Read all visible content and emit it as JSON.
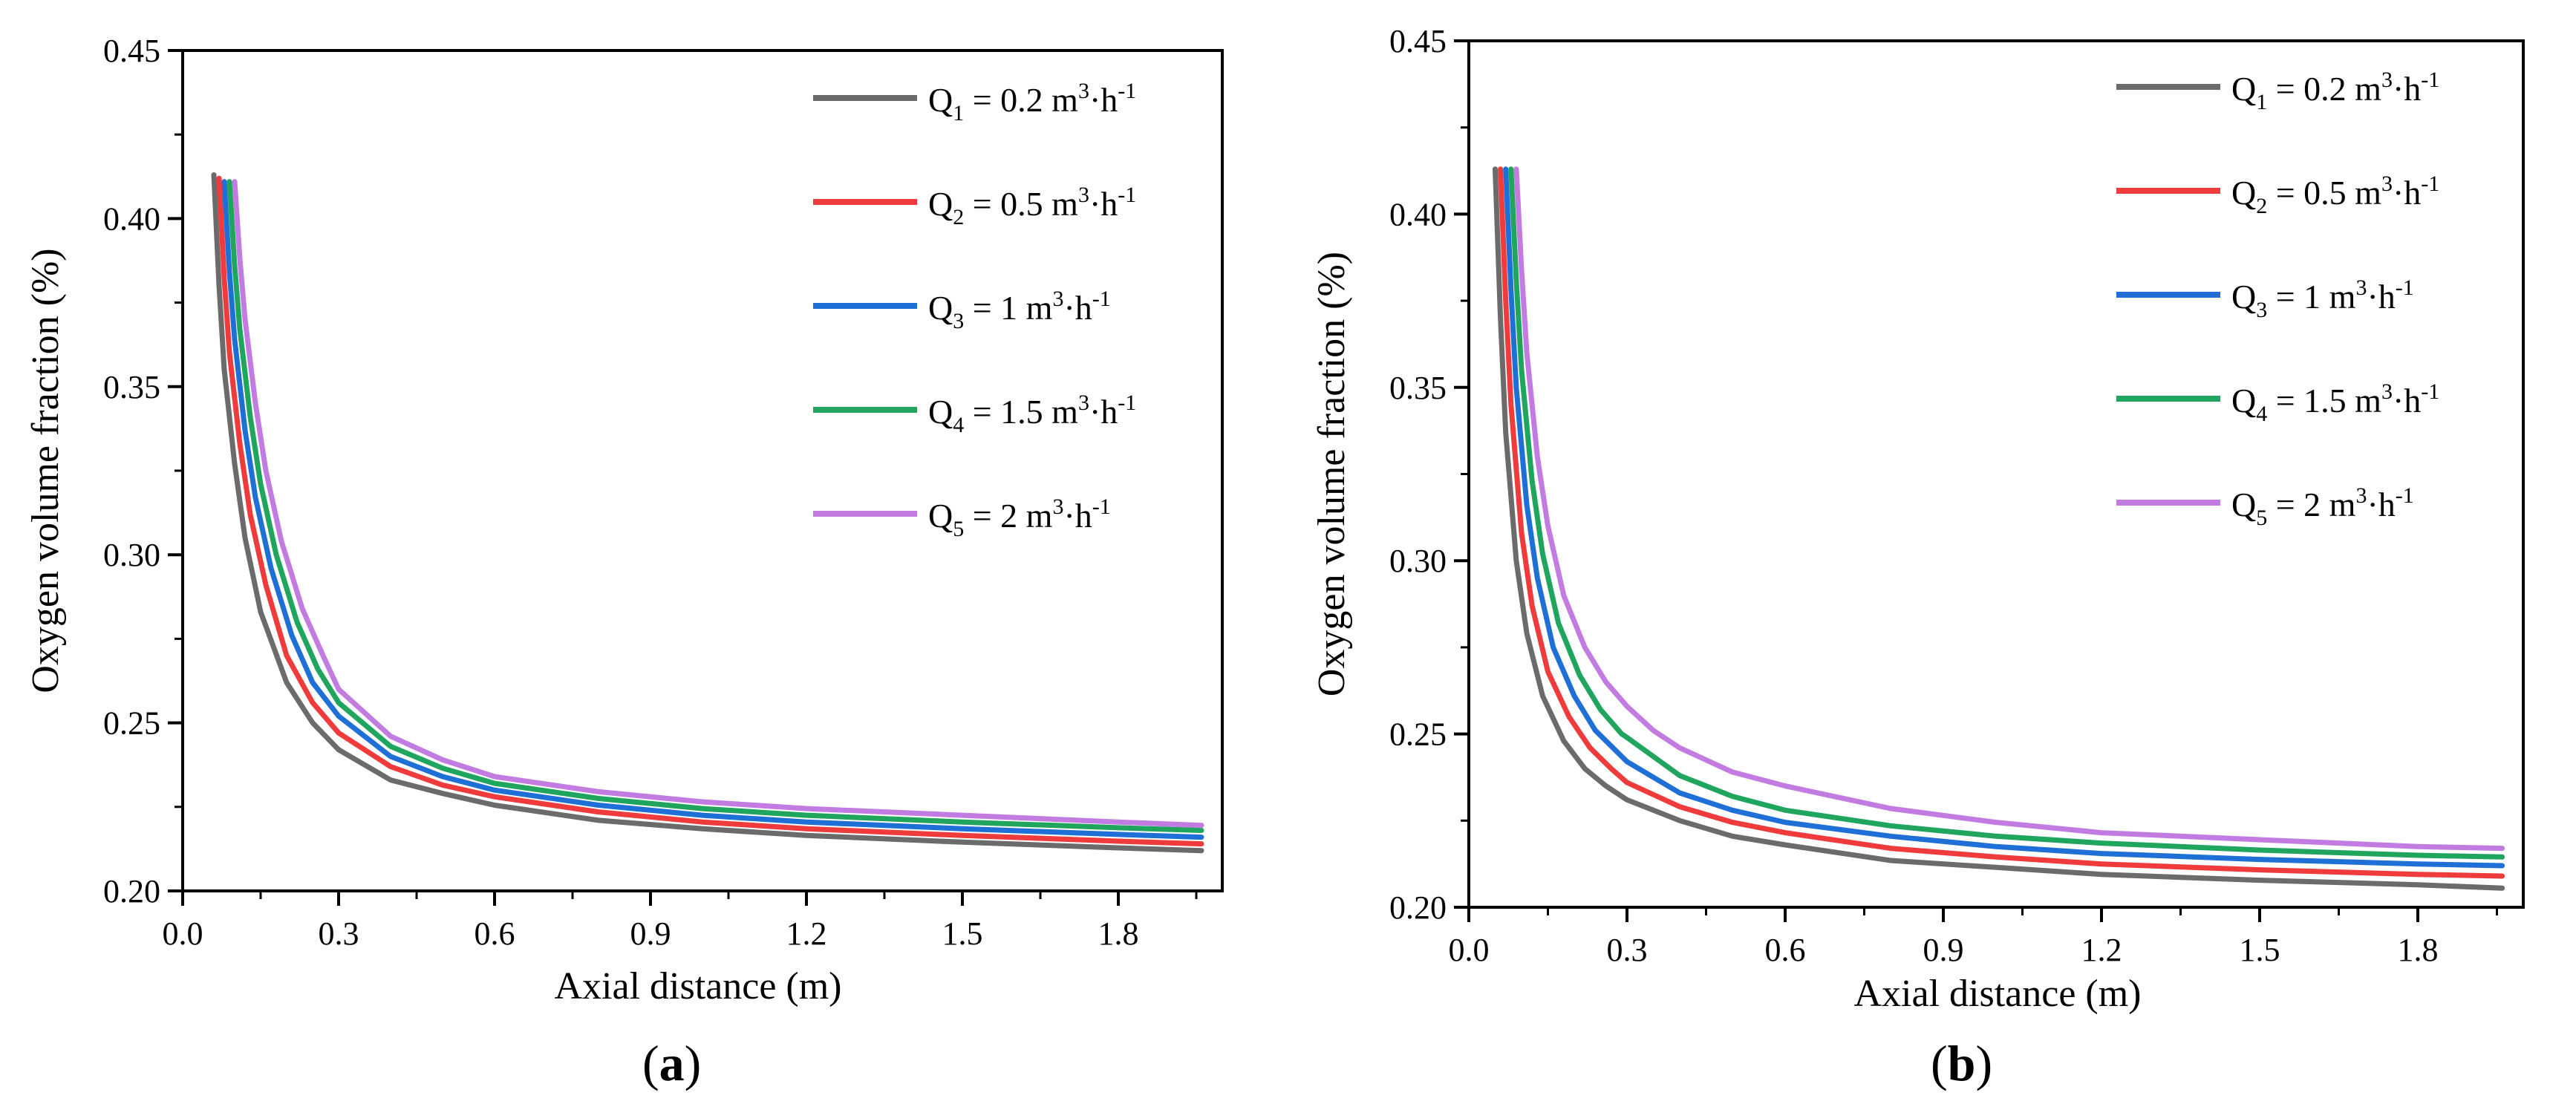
{
  "chart_data": [
    {
      "type": "line",
      "panel_label": "a",
      "xlabel": "Axial distance (m)",
      "ylabel": "Oxygen volume fraction (%)",
      "xlim": [
        0.0,
        2.0
      ],
      "ylim": [
        0.2,
        0.45
      ],
      "xticks": [
        "0.0",
        "0.3",
        "0.6",
        "0.9",
        "1.2",
        "1.5",
        "1.8"
      ],
      "yticks": [
        "0.20",
        "0.25",
        "0.30",
        "0.35",
        "0.40",
        "0.45"
      ],
      "legend_position": "top-right",
      "series": [
        {
          "name": "Q1 = 0.2 m3·h-1",
          "label_main": "Q",
          "label_sub": "1",
          "label_value": "= 0.2 m",
          "label_sup1": "3",
          "label_unit": "·h",
          "label_sup2": "-1",
          "color": "#6b6b6b",
          "x": [
            0.06,
            0.07,
            0.08,
            0.1,
            0.12,
            0.15,
            0.2,
            0.25,
            0.3,
            0.4,
            0.5,
            0.6,
            0.8,
            1.0,
            1.2,
            1.5,
            1.8,
            1.96
          ],
          "y": [
            0.413,
            0.38,
            0.355,
            0.327,
            0.305,
            0.283,
            0.262,
            0.25,
            0.242,
            0.233,
            0.229,
            0.2255,
            0.221,
            0.2185,
            0.2165,
            0.2145,
            0.2128,
            0.212
          ]
        },
        {
          "name": "Q2 = 0.5 m3·h-1",
          "label_main": "Q",
          "label_sub": "2",
          "label_value": "= 0.5 m",
          "label_sup1": "3",
          "label_unit": "·h",
          "label_sup2": "-1",
          "color": "#ef3b3b",
          "x": [
            0.07,
            0.08,
            0.09,
            0.11,
            0.13,
            0.16,
            0.2,
            0.25,
            0.3,
            0.4,
            0.5,
            0.6,
            0.8,
            1.0,
            1.2,
            1.5,
            1.8,
            1.96
          ],
          "y": [
            0.412,
            0.382,
            0.36,
            0.333,
            0.312,
            0.291,
            0.27,
            0.256,
            0.247,
            0.237,
            0.2315,
            0.228,
            0.2235,
            0.2205,
            0.2185,
            0.2165,
            0.2148,
            0.214
          ]
        },
        {
          "name": "Q3 = 1 m3·h-1",
          "label_main": "Q",
          "label_sub": "3",
          "label_value": "= 1 m",
          "label_sup1": "3",
          "label_unit": "·h",
          "label_sup2": "-1",
          "color": "#1e6fd6",
          "x": [
            0.08,
            0.09,
            0.1,
            0.12,
            0.14,
            0.17,
            0.21,
            0.25,
            0.3,
            0.4,
            0.5,
            0.6,
            0.8,
            1.0,
            1.2,
            1.5,
            1.8,
            1.96
          ],
          "y": [
            0.411,
            0.384,
            0.364,
            0.337,
            0.317,
            0.296,
            0.276,
            0.262,
            0.252,
            0.24,
            0.234,
            0.23,
            0.2255,
            0.2225,
            0.2205,
            0.2185,
            0.2168,
            0.216
          ]
        },
        {
          "name": "Q4 = 1.5 m3·h-1",
          "label_main": "Q",
          "label_sub": "4",
          "label_value": "= 1.5 m",
          "label_sup1": "3",
          "label_unit": "·h",
          "label_sup2": "-1",
          "color": "#1fa55e",
          "x": [
            0.09,
            0.1,
            0.11,
            0.13,
            0.15,
            0.18,
            0.22,
            0.26,
            0.3,
            0.4,
            0.5,
            0.6,
            0.8,
            1.0,
            1.2,
            1.5,
            1.8,
            1.96
          ],
          "y": [
            0.411,
            0.386,
            0.367,
            0.341,
            0.321,
            0.3,
            0.28,
            0.266,
            0.256,
            0.243,
            0.2365,
            0.232,
            0.2275,
            0.2245,
            0.2225,
            0.2205,
            0.2188,
            0.218
          ]
        },
        {
          "name": "Q5 = 2 m3·h-1",
          "label_main": "Q",
          "label_sub": "5",
          "label_value": "= 2 m",
          "label_sup1": "3",
          "label_unit": "·h",
          "label_sup2": "-1",
          "color": "#c27be0",
          "x": [
            0.1,
            0.11,
            0.12,
            0.14,
            0.16,
            0.19,
            0.23,
            0.27,
            0.3,
            0.4,
            0.5,
            0.6,
            0.8,
            1.0,
            1.2,
            1.5,
            1.8,
            1.96
          ],
          "y": [
            0.411,
            0.388,
            0.37,
            0.345,
            0.325,
            0.304,
            0.284,
            0.27,
            0.26,
            0.246,
            0.239,
            0.234,
            0.2295,
            0.2265,
            0.2245,
            0.2225,
            0.2205,
            0.2195
          ]
        }
      ]
    },
    {
      "type": "line",
      "panel_label": "b",
      "xlabel": "Axial distance (m)",
      "ylabel": "Oxygen volume fraction (%)",
      "xlim": [
        0.0,
        2.0
      ],
      "ylim": [
        0.2,
        0.45
      ],
      "xticks": [
        "0.0",
        "0.3",
        "0.6",
        "0.9",
        "1.2",
        "1.5",
        "1.8"
      ],
      "yticks": [
        "0.20",
        "0.25",
        "0.30",
        "0.35",
        "0.40",
        "0.45"
      ],
      "legend_position": "top-right",
      "series": [
        {
          "name": "Q1 = 0.2 m3·h-1",
          "label_main": "Q",
          "label_sub": "1",
          "label_value": "= 0.2 m",
          "label_sup1": "3",
          "label_unit": "·h",
          "label_sup2": "-1",
          "color": "#6b6b6b",
          "x": [
            0.05,
            0.06,
            0.07,
            0.09,
            0.11,
            0.14,
            0.18,
            0.22,
            0.26,
            0.3,
            0.4,
            0.5,
            0.6,
            0.8,
            1.0,
            1.2,
            1.5,
            1.8,
            1.96
          ],
          "y": [
            0.413,
            0.37,
            0.337,
            0.3,
            0.279,
            0.261,
            0.248,
            0.24,
            0.235,
            0.231,
            0.225,
            0.2205,
            0.218,
            0.2135,
            0.2115,
            0.2095,
            0.2078,
            0.2065,
            0.2055
          ]
        },
        {
          "name": "Q2 = 0.5 m3·h-1",
          "label_main": "Q",
          "label_sub": "2",
          "label_value": "= 0.5 m",
          "label_sup1": "3",
          "label_unit": "·h",
          "label_sup2": "-1",
          "color": "#ef3b3b",
          "x": [
            0.06,
            0.07,
            0.08,
            0.1,
            0.12,
            0.15,
            0.19,
            0.23,
            0.27,
            0.3,
            0.4,
            0.5,
            0.6,
            0.8,
            1.0,
            1.2,
            1.5,
            1.8,
            1.96
          ],
          "y": [
            0.413,
            0.375,
            0.345,
            0.308,
            0.287,
            0.268,
            0.255,
            0.246,
            0.24,
            0.236,
            0.229,
            0.2245,
            0.2215,
            0.217,
            0.2145,
            0.2125,
            0.2108,
            0.2095,
            0.209
          ]
        },
        {
          "name": "Q3 = 1 m3·h-1",
          "label_main": "Q",
          "label_sub": "3",
          "label_value": "= 1 m",
          "label_sup1": "3",
          "label_unit": "·h",
          "label_sup2": "-1",
          "color": "#1e6fd6",
          "x": [
            0.07,
            0.08,
            0.09,
            0.11,
            0.13,
            0.16,
            0.2,
            0.24,
            0.28,
            0.3,
            0.4,
            0.5,
            0.6,
            0.8,
            1.0,
            1.2,
            1.5,
            1.8,
            1.96
          ],
          "y": [
            0.413,
            0.378,
            0.35,
            0.316,
            0.295,
            0.275,
            0.261,
            0.251,
            0.245,
            0.242,
            0.233,
            0.228,
            0.2245,
            0.2205,
            0.2175,
            0.2155,
            0.2138,
            0.2125,
            0.212
          ]
        },
        {
          "name": "Q4 = 1.5 m3·h-1",
          "label_main": "Q",
          "label_sub": "4",
          "label_value": "= 1.5 m",
          "label_sup1": "3",
          "label_unit": "·h",
          "label_sup2": "-1",
          "color": "#1fa55e",
          "x": [
            0.08,
            0.09,
            0.1,
            0.12,
            0.14,
            0.17,
            0.21,
            0.25,
            0.29,
            0.3,
            0.4,
            0.5,
            0.6,
            0.8,
            1.0,
            1.2,
            1.5,
            1.8,
            1.96
          ],
          "y": [
            0.413,
            0.381,
            0.355,
            0.323,
            0.302,
            0.282,
            0.267,
            0.257,
            0.25,
            0.249,
            0.238,
            0.232,
            0.228,
            0.2235,
            0.2205,
            0.2185,
            0.2165,
            0.215,
            0.2145
          ]
        },
        {
          "name": "Q5 = 2 m3·h-1",
          "label_main": "Q",
          "label_sub": "5",
          "label_value": "= 2 m",
          "label_sup1": "3",
          "label_unit": "·h",
          "label_sup2": "-1",
          "color": "#c27be0",
          "x": [
            0.09,
            0.1,
            0.11,
            0.13,
            0.15,
            0.18,
            0.22,
            0.26,
            0.3,
            0.35,
            0.4,
            0.5,
            0.6,
            0.8,
            1.0,
            1.2,
            1.5,
            1.8,
            1.96
          ],
          "y": [
            0.413,
            0.384,
            0.36,
            0.33,
            0.31,
            0.29,
            0.275,
            0.265,
            0.258,
            0.251,
            0.246,
            0.239,
            0.235,
            0.2285,
            0.2245,
            0.2215,
            0.2195,
            0.2175,
            0.217
          ]
        }
      ]
    }
  ],
  "panel_labels": {
    "a": "(a)",
    "b": "(b)"
  }
}
